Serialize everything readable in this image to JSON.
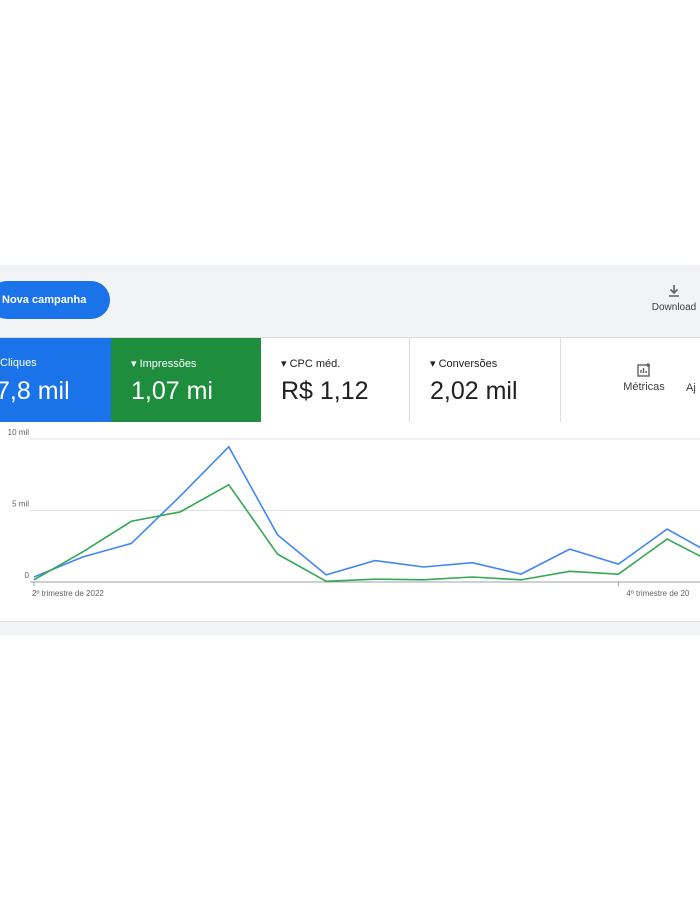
{
  "toolbar": {
    "new_campaign": "Nova campanha",
    "download": "Download"
  },
  "metrics": [
    {
      "label": "Cliques",
      "value": "7,8 mil"
    },
    {
      "label": "Impressões",
      "value": "1,07 mi"
    },
    {
      "label": "CPC méd.",
      "value": "R$ 1,12"
    },
    {
      "label": "Conversões",
      "value": "2,02 mil"
    }
  ],
  "tools": [
    "Métricas",
    "Aj"
  ],
  "chart_data": {
    "type": "line",
    "categories": [
      "2º trimestre de 2022",
      null,
      null,
      null,
      null,
      null,
      null,
      null,
      null,
      null,
      null,
      null,
      "4º trimestre de 20",
      null,
      null
    ],
    "series": [
      {
        "color": "#4285f4",
        "values": [
          350,
          1750,
          2700,
          6000,
          9450,
          3300,
          500,
          1500,
          1050,
          1350,
          550,
          2300,
          1250,
          3700,
          1800
        ]
      },
      {
        "color": "#34a853",
        "values": [
          150,
          2100,
          4250,
          4900,
          6800,
          1950,
          50,
          200,
          150,
          350,
          150,
          750,
          550,
          3000,
          1250
        ]
      }
    ],
    "ylim": [
      0,
      10000
    ],
    "yticks": [
      0,
      {
        "value": 5000,
        "label": "5 mil"
      },
      {
        "value": 10000,
        "label": "10 mil"
      }
    ],
    "grid": true
  }
}
